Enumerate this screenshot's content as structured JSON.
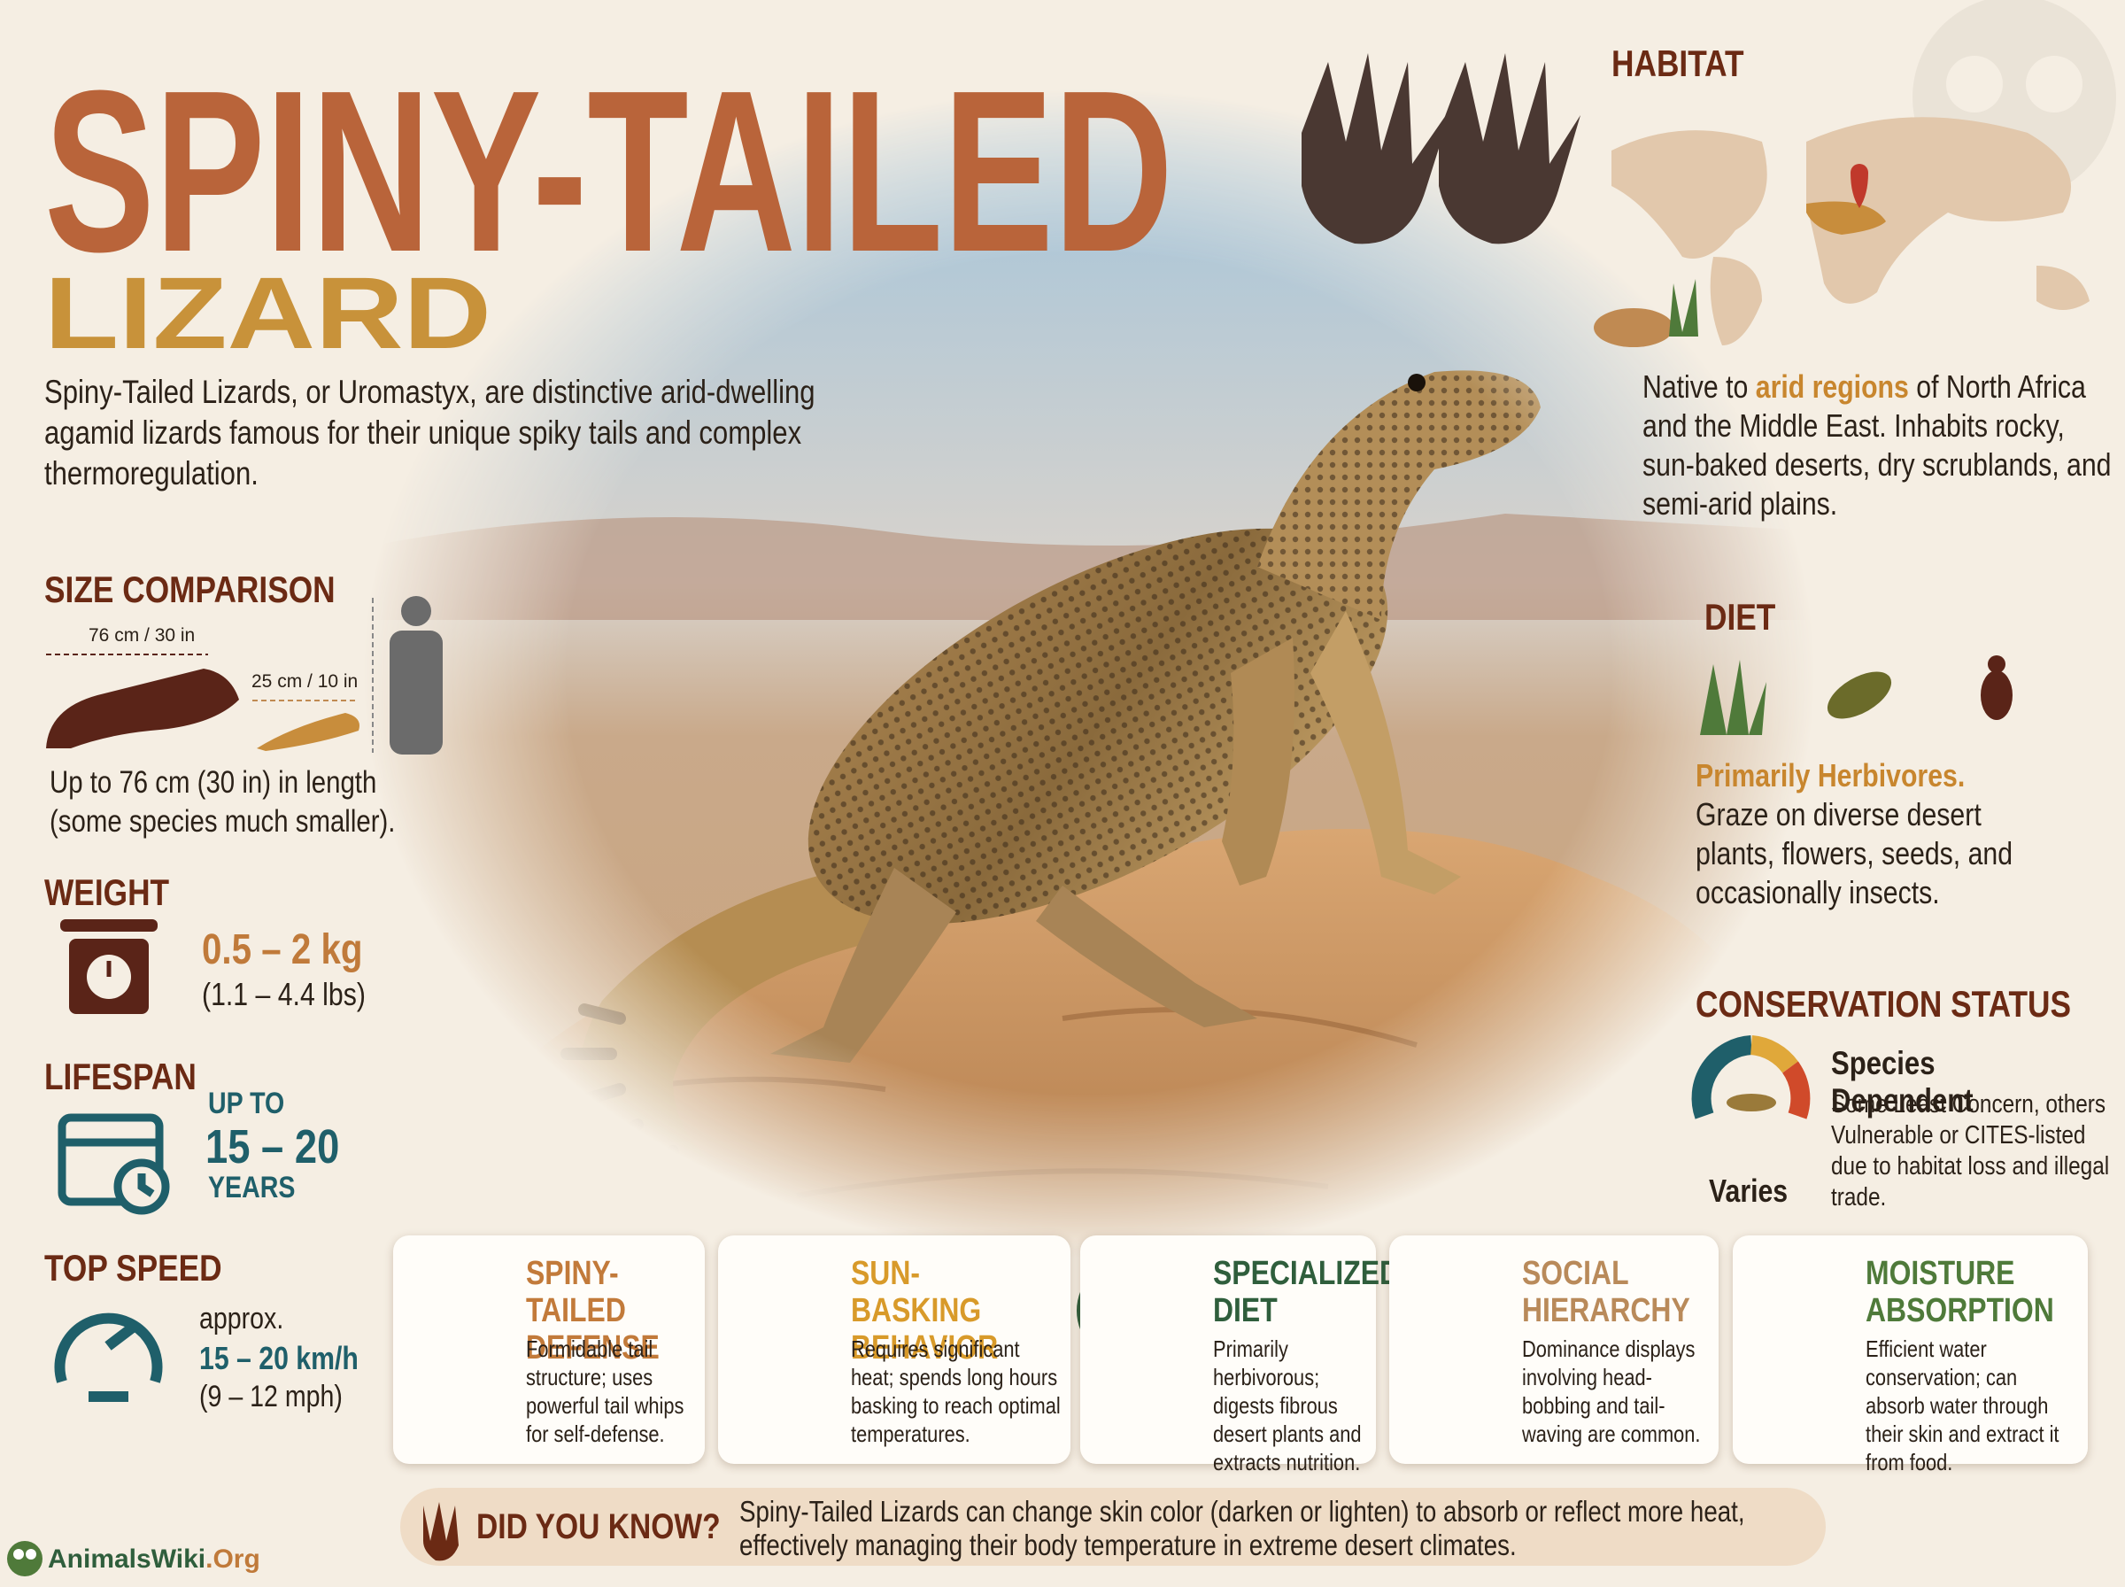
{
  "header": {
    "title": "SPINY-TAILED",
    "subtitle": "LIZARD",
    "intro": "Spiny-Tailed Lizards, or Uromastyx, are distinctive arid-dwelling agamid lizards famous for their unique spiky tails and complex thermoregulation."
  },
  "size_comparison": {
    "heading": "SIZE COMPARISON",
    "large_label": "76 cm / 30 in",
    "small_label": "25 cm / 10 in",
    "text": "Up to 76 cm (30 in) in length (some species much smaller)."
  },
  "weight": {
    "heading": "WEIGHT",
    "value": "0.5 – 2 kg",
    "imperial": "(1.1 – 4.4 lbs)"
  },
  "lifespan": {
    "heading": "LIFESPAN",
    "prefix": "UP TO",
    "value": "15 – 20",
    "unit": "YEARS"
  },
  "top_speed": {
    "heading": "TOP SPEED",
    "prefix": "approx.",
    "value": "15 – 20 km/h",
    "imperial": "(9 – 12 mph)"
  },
  "habitat": {
    "heading": "HABITAT",
    "text_before": "Native to",
    "highlight": "arid regions",
    "text_after": "of North Africa and the Middle East. Inhabits rocky, sun-baked deserts, dry scrublands, and semi-arid plains."
  },
  "diet": {
    "heading": "DIET",
    "highlight": "Primarily Herbivores.",
    "text": "Graze on diverse desert plants, flowers, seeds, and occasionally insects."
  },
  "conservation": {
    "heading": "CONSERVATION STATUS",
    "status": "Species Dependent",
    "text": "Some Least Concern, others Vulnerable or CITES-listed due to habitat loss and illegal trade.",
    "gauge_label": "Varies"
  },
  "cards": [
    {
      "title_lines": [
        "SPINY-TAILED",
        "DEFENSE"
      ],
      "text": "Formidable tail structure; uses powerful tail whips for self-defense."
    },
    {
      "title_lines": [
        "SUN-BASKING",
        "BEHAVIOR"
      ],
      "text": "Requires significant heat; spends long hours basking to reach optimal temperatures."
    },
    {
      "title_lines": [
        "SPECIALIZED",
        "DIET"
      ],
      "text": "Primarily herbivorous; digests fibrous desert plants and extracts nutrition."
    },
    {
      "title_lines": [
        "SOCIAL",
        "HIERARCHY"
      ],
      "text": "Dominance displays involving head-bobbing and tail-waving are common."
    },
    {
      "title_lines": [
        "MOISTURE",
        "ABSORPTION"
      ],
      "text": "Efficient water conservation; can absorb water through their skin and extract it from food."
    }
  ],
  "did_you_know": {
    "heading": "DID YOU KNOW?",
    "text": "Spiny-Tailed Lizards can change skin color (darken or lighten) to absorb or reflect more heat, effectively managing their body temperature in extreme desert climates."
  },
  "logo": {
    "name": "AnimalsWiki",
    "suffix": ".Org"
  }
}
